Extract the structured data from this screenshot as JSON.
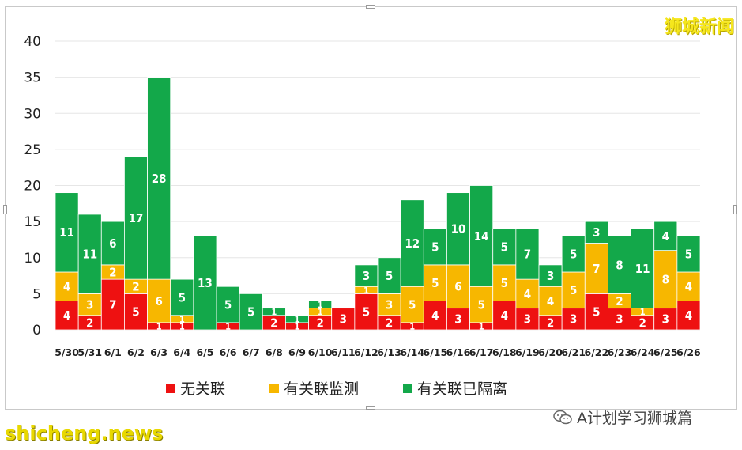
{
  "brand_text": "狮城新闻",
  "watermark_left": "shicheng.news",
  "watermark_right": "A计划学习狮城篇",
  "colors": {
    "unlinked": "#ee1111",
    "linked_monitored": "#f7b700",
    "linked_quarantined": "#13a84a"
  },
  "chart_data": {
    "type": "bar",
    "stacked": true,
    "categories": [
      "5/30",
      "5/31",
      "6/1",
      "6/2",
      "6/3",
      "6/4",
      "6/5",
      "6/6",
      "6/7",
      "6/8",
      "6/9",
      "6/10",
      "6/11",
      "6/12",
      "6/13",
      "6/14",
      "6/15",
      "6/16",
      "6/17",
      "6/18",
      "6/19",
      "6/20",
      "6/21",
      "6/22",
      "6/23",
      "6/24",
      "6/25",
      "6/26"
    ],
    "series": [
      {
        "name": "无关联",
        "color": "#ee1111",
        "values": [
          4,
          2,
          7,
          5,
          1,
          1,
          0,
          1,
          0,
          2,
          1,
          2,
          3,
          5,
          2,
          1,
          4,
          3,
          1,
          4,
          3,
          2,
          3,
          5,
          3,
          2,
          3,
          4
        ]
      },
      {
        "name": "有关联监测",
        "color": "#f7b700",
        "values": [
          4,
          3,
          2,
          2,
          6,
          1,
          0,
          0,
          0,
          0,
          0,
          1,
          0,
          1,
          3,
          5,
          5,
          6,
          5,
          5,
          4,
          4,
          5,
          7,
          2,
          1,
          8,
          4
        ]
      },
      {
        "name": "有关联已隔离",
        "color": "#13a84a",
        "values": [
          11,
          11,
          6,
          17,
          28,
          5,
          13,
          5,
          5,
          1,
          1,
          1,
          0,
          3,
          5,
          12,
          5,
          10,
          14,
          5,
          7,
          3,
          5,
          3,
          8,
          11,
          4,
          5
        ]
      }
    ],
    "ylim": [
      0,
      40
    ],
    "yticks": [
      0,
      5,
      10,
      15,
      20,
      25,
      30,
      35,
      40
    ],
    "grid": true,
    "legend_position": "bottom",
    "xlabel": "",
    "ylabel": ""
  }
}
